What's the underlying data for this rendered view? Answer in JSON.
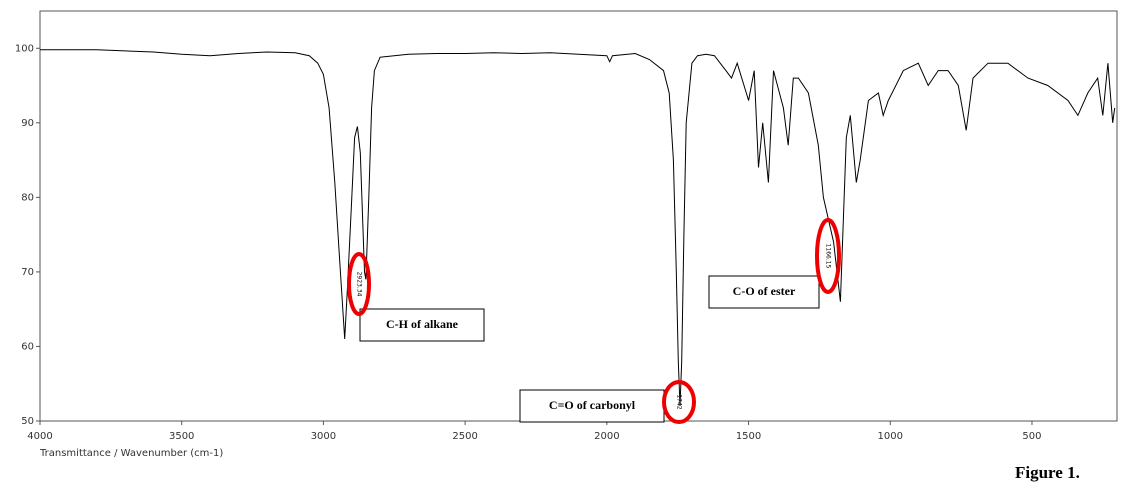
{
  "chart_data": {
    "type": "line",
    "x_label": "Transmittance / Wavenumber (cm-1)",
    "caption": "Figure 1.",
    "color": "#000000",
    "x": [
      4000,
      3800,
      3600,
      3500,
      3400,
      3300,
      3200,
      3100,
      3050,
      3020,
      3000,
      2980,
      2960,
      2940,
      2925,
      2915,
      2900,
      2890,
      2880,
      2870,
      2855,
      2850,
      2840,
      2830,
      2820,
      2800,
      2700,
      2600,
      2500,
      2400,
      2300,
      2200,
      2100,
      2000,
      1990,
      1980,
      1900,
      1850,
      1800,
      1780,
      1765,
      1755,
      1748,
      1742,
      1736,
      1728,
      1720,
      1700,
      1680,
      1650,
      1620,
      1600,
      1580,
      1560,
      1540,
      1500,
      1480,
      1465,
      1450,
      1430,
      1412,
      1377,
      1360,
      1342,
      1324,
      1289,
      1254,
      1236,
      1200,
      1176,
      1155,
      1141,
      1120,
      1106,
      1077,
      1042,
      1025,
      1007,
      954,
      901,
      866,
      831,
      796,
      760,
      732,
      708,
      655,
      585,
      514,
      444,
      373,
      338,
      303,
      268,
      250,
      232,
      215,
      208
    ],
    "values": [
      99.8,
      99.8,
      99.5,
      99.2,
      99.0,
      99.3,
      99.5,
      99.4,
      99.0,
      98.0,
      96.5,
      92,
      82,
      70,
      61,
      68,
      80,
      88,
      89.5,
      86,
      70,
      69,
      80,
      92,
      97,
      98.8,
      99.2,
      99.3,
      99.3,
      99.4,
      99.3,
      99.4,
      99.2,
      99.0,
      98.2,
      99.0,
      99.3,
      98.5,
      97,
      94,
      85,
      70,
      58,
      52,
      58,
      75,
      90,
      98,
      99,
      99.2,
      99,
      98,
      97,
      96,
      98,
      93,
      97,
      84,
      90,
      82,
      97,
      92,
      87,
      96,
      96,
      94,
      87,
      80,
      74,
      66,
      88,
      91,
      82,
      85,
      93,
      94,
      91,
      93,
      97,
      98,
      95,
      97,
      97,
      95,
      89,
      96,
      98,
      98,
      96,
      95,
      93,
      91,
      94,
      96,
      91,
      98,
      90,
      92
    ],
    "xlim": [
      4000,
      200
    ],
    "ylim": [
      50,
      105
    ],
    "xticks": [
      4000,
      3500,
      3000,
      2500,
      2000,
      1500,
      1000,
      500
    ],
    "yticks": [
      50,
      60,
      70,
      80,
      90,
      100
    ],
    "annotations": [
      {
        "text": "C-H of alkane",
        "peak": "2923.34"
      },
      {
        "text": "C=O of carbonyl",
        "peak": "1742"
      },
      {
        "text": "C-O of ester",
        "peak": "1166.15"
      }
    ]
  }
}
